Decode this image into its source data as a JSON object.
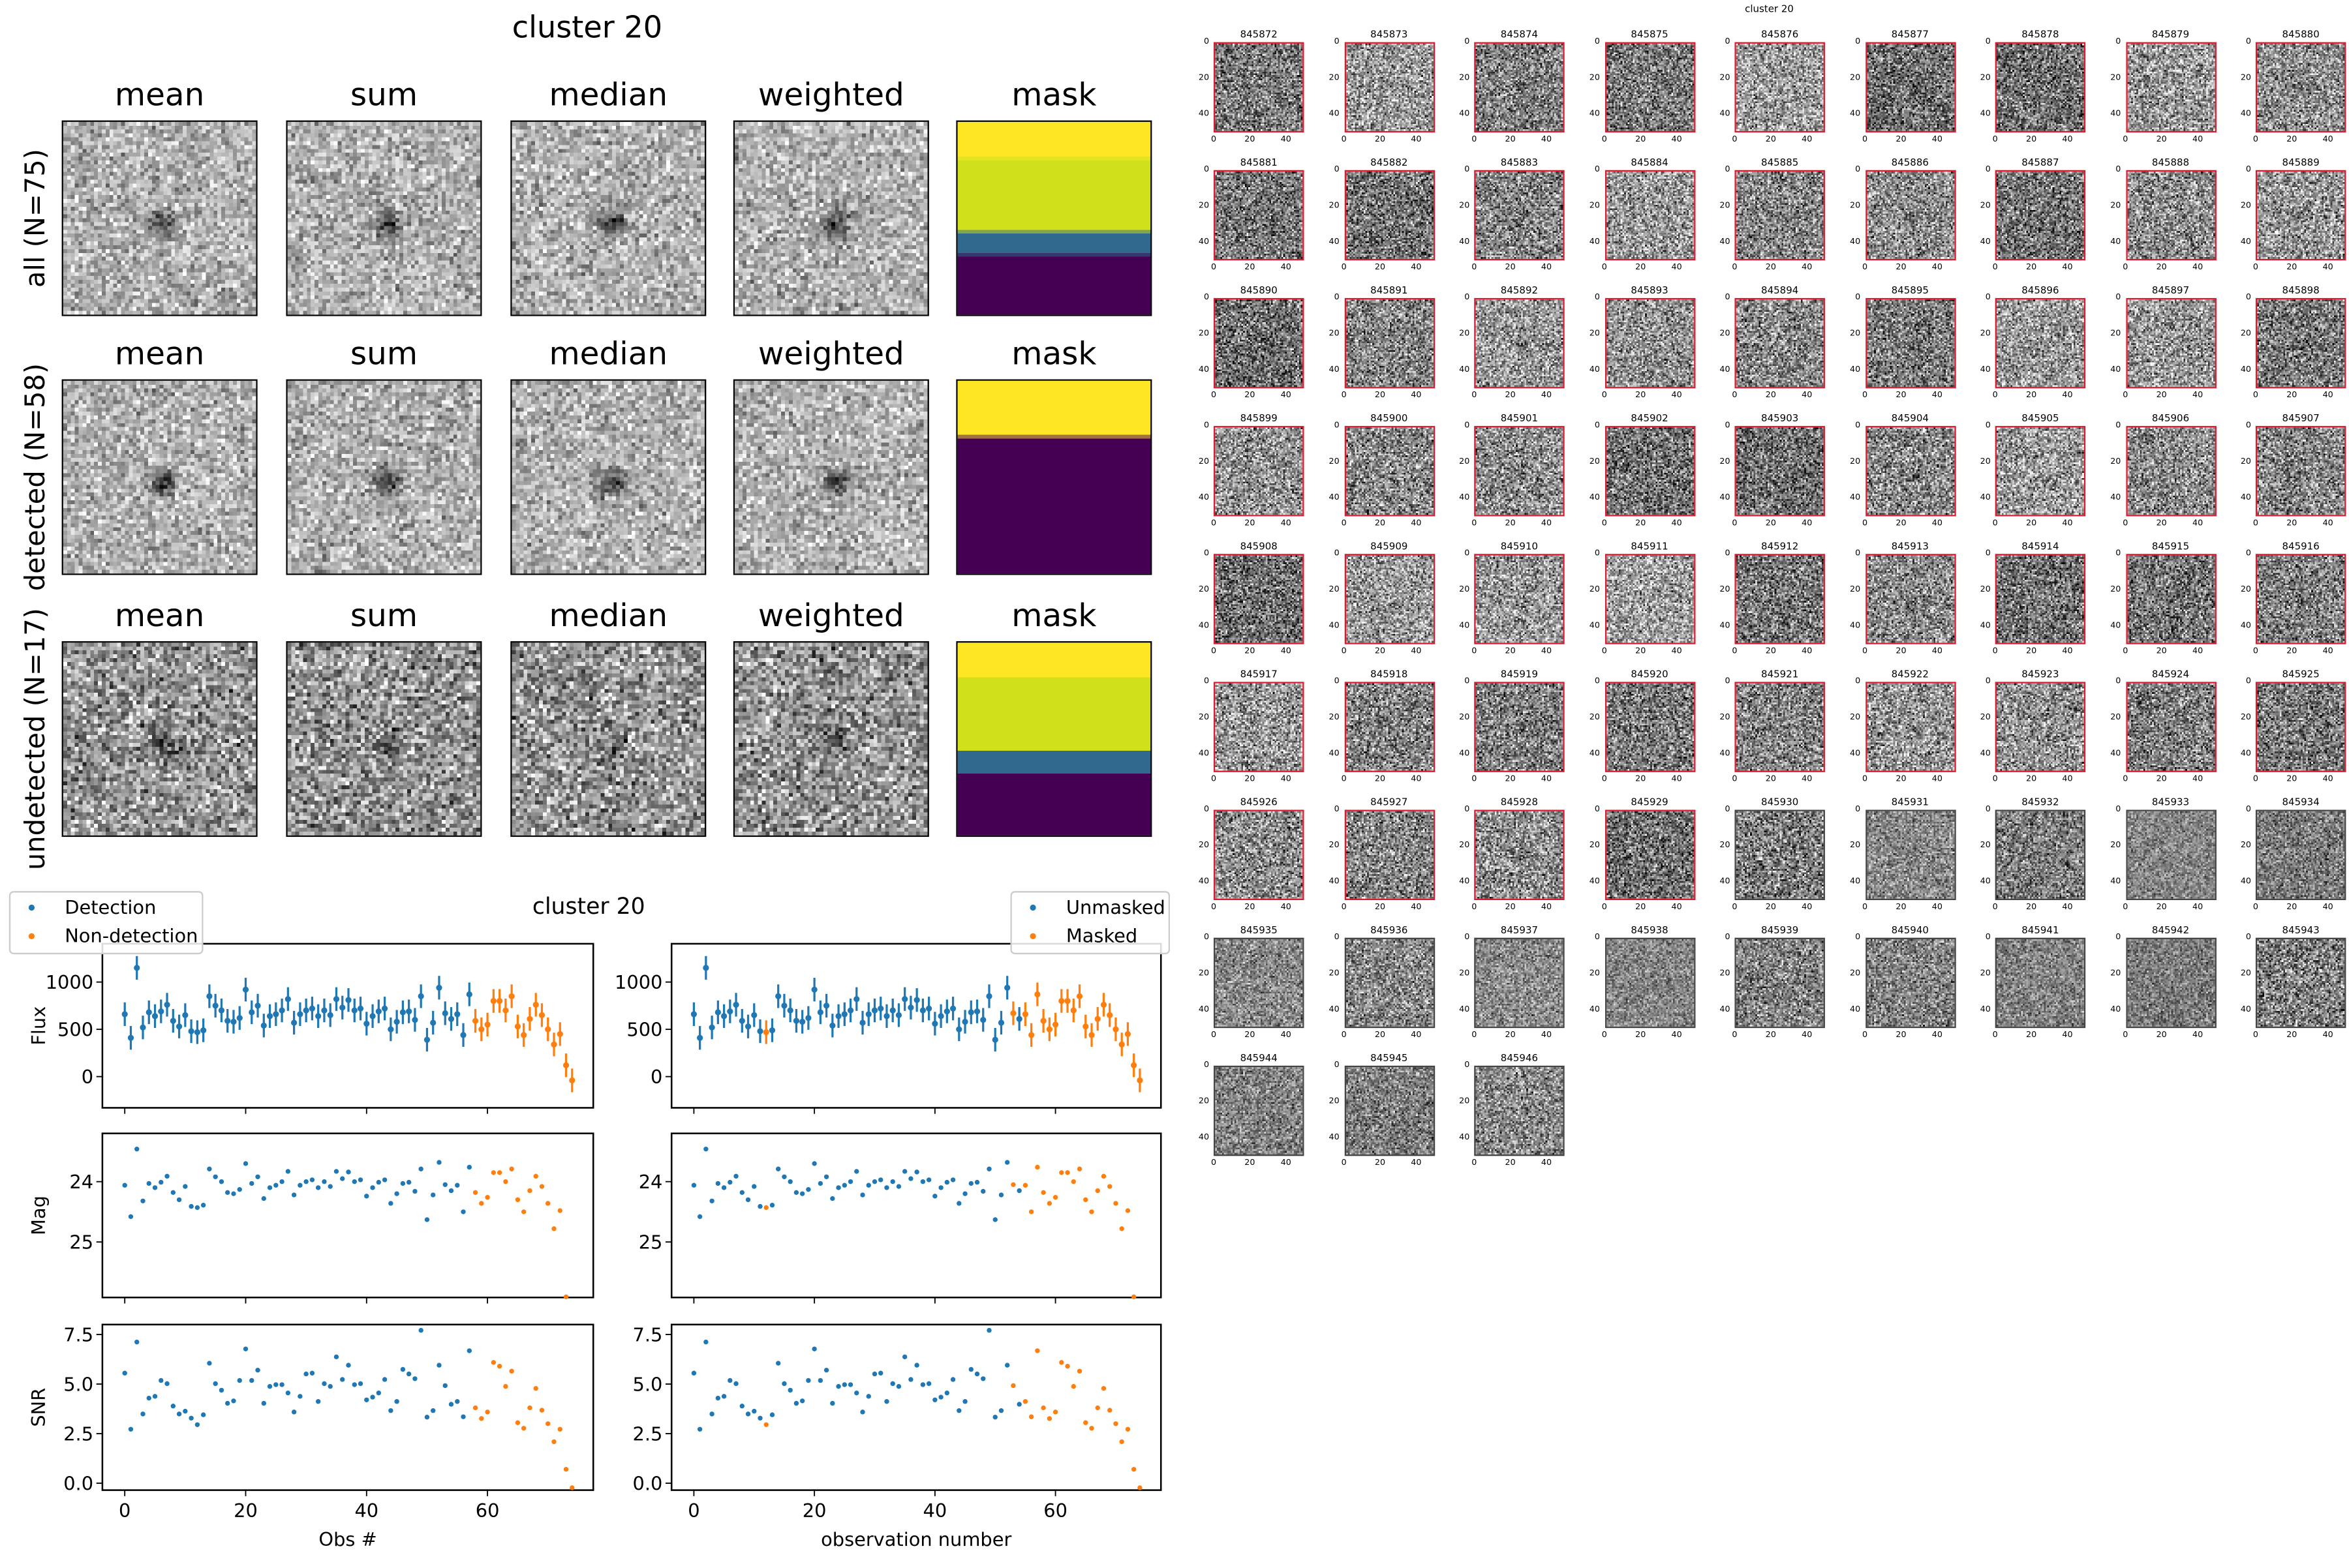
{
  "stacks": {
    "title": "cluster 20",
    "column_titles": [
      "mean",
      "sum",
      "median",
      "weighted",
      "mask"
    ],
    "rows": [
      {
        "label": "all (N=75)"
      },
      {
        "label": "detected (N=58)"
      },
      {
        "label": "undetected (N=17)"
      }
    ],
    "mask_colors": {
      "yellow": "#fde725",
      "yellowgreen": "#d0e11c",
      "teal": "#31688e",
      "purple": "#440154"
    }
  },
  "chart_data": {
    "type": "scatter",
    "title": "cluster 20",
    "colors": {
      "blue": "#1f77b4",
      "orange": "#ff7f0e"
    },
    "left": {
      "xlabel": "Obs #",
      "legend": [
        "Detection",
        "Non-detection"
      ],
      "legend_placement": "top-left",
      "orange_indices": [
        58,
        59,
        60,
        61,
        62,
        63,
        64,
        65,
        66,
        67,
        68,
        69,
        70,
        71,
        72,
        73,
        74
      ]
    },
    "right": {
      "xlabel": "observation number",
      "legend": [
        "Unmasked",
        "Masked"
      ],
      "legend_placement": "top-right",
      "orange_indices": [
        12,
        53,
        55,
        56,
        57,
        58,
        59,
        60,
        61,
        62,
        63,
        64,
        65,
        66,
        67,
        68,
        69,
        70,
        71,
        72,
        73,
        74
      ]
    },
    "xlim": [
      -3.7,
      77.5
    ],
    "xticks": [
      0,
      20,
      40,
      60
    ],
    "xtick_labels": [
      "0",
      "20",
      "40",
      "60"
    ],
    "panels": [
      {
        "key": "flux",
        "ylabel": "Flux",
        "ylim": [
          -330,
          1405
        ],
        "yticks": [
          0,
          500,
          1000
        ],
        "ytick_labels": [
          "0",
          "500",
          "1000"
        ],
        "inverted": false
      },
      {
        "key": "mag",
        "ylabel": "Mag",
        "ylim": [
          23.2,
          25.92
        ],
        "yticks": [
          24,
          25
        ],
        "ytick_labels": [
          "24",
          "25"
        ],
        "inverted": true
      },
      {
        "key": "snr",
        "ylabel": "SNR",
        "ylim": [
          -0.35,
          8.0
        ],
        "yticks": [
          0,
          2.5,
          5.0,
          7.5
        ],
        "ytick_labels": [
          "0.0",
          "2.5",
          "5.0",
          "7.5"
        ],
        "inverted": false
      }
    ],
    "flux_err": 125,
    "flux": [
      660,
      410,
      1150,
      520,
      680,
      640,
      690,
      760,
      590,
      530,
      650,
      480,
      470,
      490,
      850,
      750,
      700,
      590,
      580,
      620,
      920,
      680,
      750,
      540,
      640,
      660,
      700,
      820,
      570,
      660,
      700,
      720,
      640,
      700,
      650,
      820,
      730,
      810,
      700,
      720,
      560,
      640,
      690,
      720,
      500,
      580,
      680,
      690,
      600,
      850,
      390,
      570,
      940,
      670,
      610,
      660,
      440,
      870,
      590,
      500,
      550,
      800,
      800,
      700,
      850,
      530,
      440,
      610,
      760,
      650,
      500,
      340,
      450,
      120,
      -40
    ],
    "mag": [
      24.06,
      24.58,
      23.46,
      24.32,
      24.03,
      24.1,
      24.01,
      23.91,
      24.18,
      24.3,
      24.08,
      24.41,
      24.43,
      24.39,
      23.79,
      23.92,
      24.0,
      24.18,
      24.2,
      24.13,
      23.7,
      24.03,
      23.92,
      24.28,
      24.1,
      24.06,
      24.0,
      23.83,
      24.22,
      24.06,
      24.0,
      23.97,
      24.1,
      24.0,
      24.08,
      23.83,
      23.95,
      23.84,
      24.0,
      23.97,
      24.24,
      24.1,
      24.01,
      23.97,
      24.36,
      24.2,
      24.03,
      24.01,
      24.16,
      23.79,
      24.63,
      24.22,
      23.68,
      24.05,
      24.15,
      24.06,
      24.5,
      23.76,
      24.18,
      24.36,
      24.26,
      23.85,
      23.85,
      24.0,
      23.79,
      24.3,
      24.5,
      24.15,
      23.91,
      24.08,
      24.36,
      24.78,
      24.48,
      25.91,
      null
    ],
    "snr": [
      5.55,
      2.72,
      7.12,
      3.49,
      4.29,
      4.38,
      5.18,
      5.02,
      3.89,
      3.49,
      3.63,
      3.28,
      2.95,
      3.45,
      6.05,
      5.02,
      4.69,
      4.03,
      4.15,
      5.18,
      6.77,
      5.18,
      5.7,
      4.03,
      4.88,
      4.97,
      4.97,
      4.55,
      3.59,
      4.38,
      5.51,
      5.55,
      4.12,
      5.02,
      4.88,
      6.37,
      5.23,
      5.95,
      4.97,
      5.02,
      4.2,
      4.34,
      4.55,
      5.23,
      3.66,
      4.12,
      5.74,
      5.51,
      5.27,
      7.71,
      3.33,
      3.66,
      5.95,
      4.92,
      3.98,
      4.12,
      3.35,
      6.68,
      3.8,
      3.26,
      3.59,
      6.09,
      5.9,
      4.88,
      5.65,
      3.05,
      2.77,
      3.8,
      4.78,
      3.68,
      3.0,
      2.09,
      2.72,
      0.7,
      -0.23
    ]
  },
  "thumbnails": {
    "title": "cluster 20",
    "detected_count": 58,
    "detected_border": "#e0182d",
    "ticks": [
      "0",
      "20",
      "40"
    ],
    "ids": [
      "845872",
      "845873",
      "845874",
      "845875",
      "845876",
      "845877",
      "845878",
      "845879",
      "845880",
      "845881",
      "845882",
      "845883",
      "845884",
      "845885",
      "845886",
      "845887",
      "845888",
      "845889",
      "845890",
      "845891",
      "845892",
      "845893",
      "845894",
      "845895",
      "845896",
      "845897",
      "845898",
      "845899",
      "845900",
      "845901",
      "845902",
      "845903",
      "845904",
      "845905",
      "845906",
      "845907",
      "845908",
      "845909",
      "845910",
      "845911",
      "845912",
      "845913",
      "845914",
      "845915",
      "845916",
      "845917",
      "845918",
      "845919",
      "845920",
      "845921",
      "845922",
      "845923",
      "845924",
      "845925",
      "845926",
      "845927",
      "845928",
      "845929",
      "845930",
      "845931",
      "845932",
      "845933",
      "845934",
      "845935",
      "845936",
      "845937",
      "845938",
      "845939",
      "845940",
      "845941",
      "845942",
      "845943",
      "845944",
      "845945",
      "845946"
    ]
  }
}
